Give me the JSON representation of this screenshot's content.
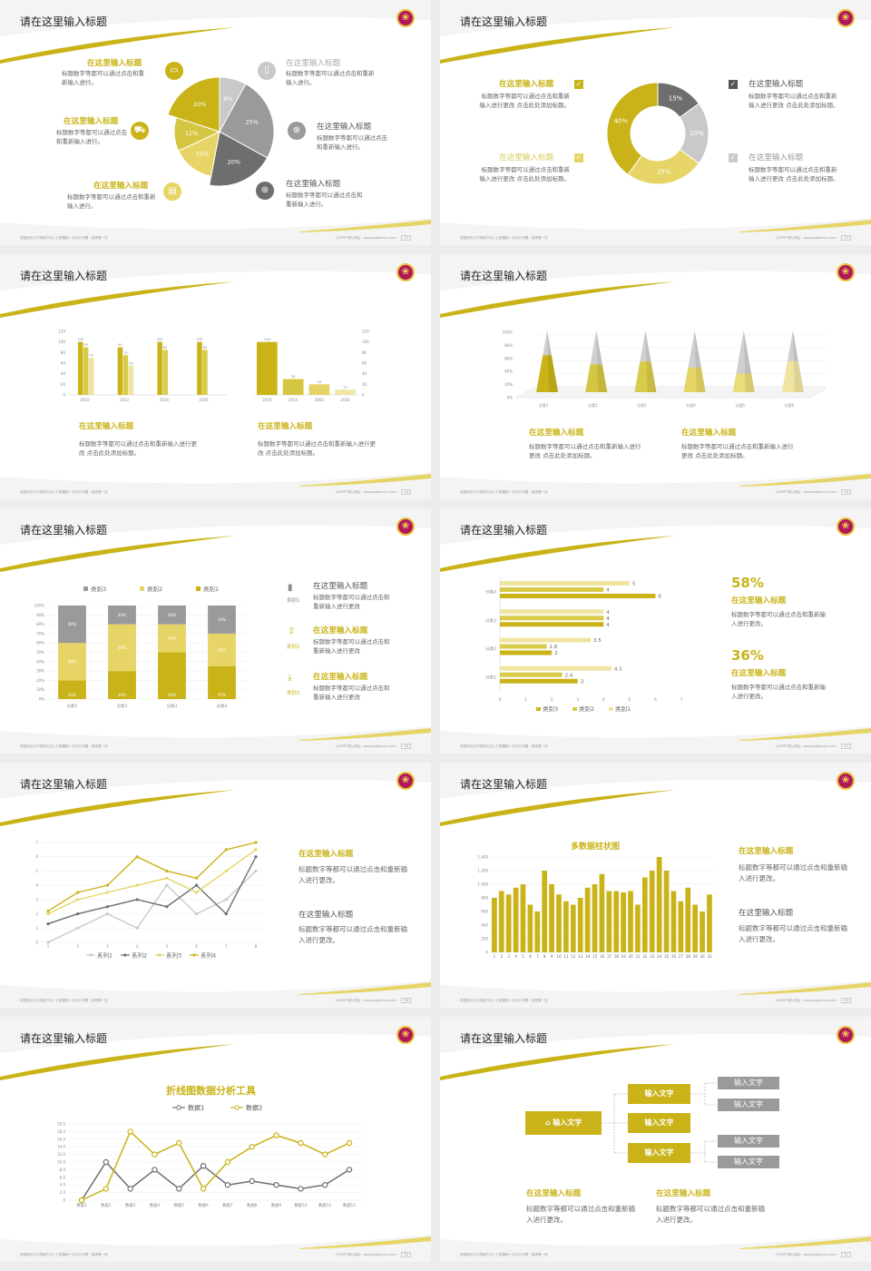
{
  "common": {
    "slide_title": "请在这里输入标题",
    "footer_left": "校园综合文字排版方法 | 汇报模板一幻灯片专题 · 辞退第一页",
    "footer_right": "[OHPPT网]  网址：www.pptgenius.com",
    "logo_glyph": "❀"
  },
  "colors": {
    "yellow": "#c9b318",
    "lightyellow": "#e6d566",
    "paleyellow": "#f0e6a4",
    "gray": "#9a9a9a",
    "darkgray": "#6e6e6e",
    "lightgray": "#c9c9c9"
  },
  "s12": {
    "page": "12",
    "pie": [
      {
        "label": "8%",
        "value": 8,
        "color": "#c9c9c9"
      },
      {
        "label": "25%",
        "value": 25,
        "color": "#9a9a9a"
      },
      {
        "label": "20%",
        "value": 20,
        "color": "#6e6e6e"
      },
      {
        "label": "15%",
        "value": 15,
        "color": "#e6d566"
      },
      {
        "label": "12%",
        "value": 12,
        "color": "#d4c640"
      },
      {
        "label": "20%",
        "value": 20,
        "color": "#c9b318"
      }
    ],
    "items": [
      {
        "title": "在这里输入标题",
        "text": "标题数字等都可以通过点击和重新输入进行。",
        "icon": "monitor-icon",
        "glyph": "▭"
      },
      {
        "title": "在这里输入标题",
        "text": "标题数字等都可以通过点击和重新输入进行。",
        "icon": "car-icon",
        "glyph": "⛟"
      },
      {
        "title": "在这里输入标题",
        "text": "标题数字等都可以通过点击和重新输入进行。",
        "icon": "book-icon",
        "glyph": "▤"
      },
      {
        "title": "在这里输入标题",
        "text": "标题数字等都可以通过点击和重新输入进行。",
        "icon": "phone-icon",
        "glyph": "▯"
      },
      {
        "title": "在这里输入标题",
        "text": "标题数字等都可以通过点击和重新输入进行。",
        "icon": "binoculars-icon",
        "glyph": "⊗"
      },
      {
        "title": "在这里输入标题",
        "text": "标题数字等都可以通过点击和重新输入进行。",
        "icon": "bicycle-icon",
        "glyph": "⊛"
      }
    ]
  },
  "s13": {
    "page": "13",
    "donut": [
      {
        "label": "15%",
        "value": 15,
        "color": "#6e6e6e"
      },
      {
        "label": "20%",
        "value": 20,
        "color": "#c9c9c9"
      },
      {
        "label": "25%",
        "value": 25,
        "color": "#e6d566"
      },
      {
        "label": "40%",
        "value": 40,
        "color": "#c9b318"
      }
    ],
    "items": [
      {
        "title": "在这里输入标题",
        "text": "标题数字等都可以通过点击和重新输入进行更改 点击此处添加标题。"
      },
      {
        "title": "在这里输入标题",
        "text": "标题数字等都可以通过点击和重新输入进行更改 点击此处添加标题。"
      },
      {
        "title": "在这里输入标题",
        "text": "标题数字等都可以通过点击和重新输入进行更改 点击此处添加标题。"
      },
      {
        "title": "在这里输入标题",
        "text": "标题数字等都可以通过点击和重新输入进行更改 点击此处添加标题。"
      }
    ]
  },
  "s14": {
    "page": "14",
    "chart_data": [
      {
        "type": "bar",
        "categories": [
          "2010",
          "2012",
          "2014",
          "2016"
        ],
        "series": [
          {
            "values": [
              100,
              90,
              100,
              100
            ]
          },
          {
            "values": [
              90,
              75,
              85,
              85
            ]
          },
          {
            "values": [
              70,
              55,
              0,
              0
            ]
          }
        ],
        "ylim": [
          0,
          120
        ],
        "yticks": [
          "0",
          "20",
          "40",
          "60",
          "80",
          "100",
          "120"
        ]
      },
      {
        "type": "bar",
        "categories": [
          "2016",
          "2014",
          "2002",
          "2018"
        ],
        "values": [
          100,
          30,
          20,
          10
        ],
        "ylim": [
          0,
          120
        ],
        "yticks": [
          "0",
          "20",
          "40",
          "60",
          "80",
          "100",
          "120"
        ]
      }
    ],
    "texts": [
      {
        "title": "在这里输入标题",
        "text": "标题数字等都可以通过点击和重新输入进行更改 点击此处添加标题。"
      },
      {
        "title": "在这里输入标题",
        "text": "标题数字等都可以通过点击和重新输入进行更改 点击此处添加标题。"
      }
    ]
  },
  "s15": {
    "page": "15",
    "chart_data": {
      "type": "bar",
      "categories": [
        "分类1",
        "分类2",
        "分类3",
        "分类4",
        "分类5",
        "分类6"
      ],
      "values": [
        60,
        45,
        50,
        40,
        30,
        50
      ],
      "ylim": [
        0,
        100
      ],
      "yticks": [
        "0%",
        "20%",
        "40%",
        "60%",
        "80%",
        "100%"
      ]
    },
    "texts": [
      {
        "title": "在这里输入标题",
        "text": "标题数字等都可以通过点击和重新输入进行更改 点击此处添加标题。"
      },
      {
        "title": "在这里输入标题",
        "text": "标题数字等都可以通过点击和重新输入进行更改 点击此处添加标题。"
      }
    ]
  },
  "s16": {
    "page": "16",
    "chart_data": {
      "type": "bar",
      "categories": [
        "分类1",
        "分类2",
        "分类3",
        "分类4"
      ],
      "series": [
        {
          "name": "类别1",
          "values": [
            20,
            30,
            50,
            35
          ]
        },
        {
          "name": "类别2",
          "values": [
            40,
            50,
            30,
            35
          ]
        },
        {
          "name": "类别3",
          "values": [
            40,
            20,
            20,
            30
          ]
        }
      ],
      "ylim": [
        0,
        100
      ],
      "yticks": [
        "0%",
        "10%",
        "20%",
        "30%",
        "40%",
        "50%",
        "60%",
        "70%",
        "80%",
        "90%",
        "100%"
      ]
    },
    "legend": [
      "类别3",
      "类别2",
      "类别1"
    ],
    "items": [
      {
        "title": "在这里输入标题",
        "text": "标题数字等都可以通过点击和重新输入进行更改",
        "tag": "类别1",
        "icon": "bar-chart-icon",
        "glyph": "▮"
      },
      {
        "title": "在这里输入标题",
        "text": "标题数字等都可以通过点击和重新输入进行更改",
        "tag": "类别2",
        "icon": "upload-icon",
        "glyph": "⇪"
      },
      {
        "title": "在这里输入标题",
        "text": "标题数字等都可以通过点击和重新输入进行更改",
        "tag": "类别3",
        "icon": "download-icon",
        "glyph": "⤓"
      }
    ]
  },
  "s17": {
    "page": "17",
    "chart_data": {
      "type": "bar",
      "categories": [
        "分类1",
        "分类2",
        "分类3",
        "分类4"
      ],
      "series": [
        {
          "name": "类别3",
          "values": [
            3,
            2,
            4,
            6
          ]
        },
        {
          "name": "类别2",
          "values": [
            2.4,
            1.8,
            4,
            4
          ]
        },
        {
          "name": "类别1",
          "values": [
            4.3,
            3.5,
            4,
            5
          ]
        }
      ],
      "xlim": [
        0,
        7
      ],
      "xticks": [
        "0",
        "1",
        "2",
        "3",
        "4",
        "5",
        "6",
        "7"
      ]
    },
    "stat1": {
      "value": "58%",
      "title": "在这里输入标题",
      "text": "标题数字等都可以通过点击和重新输入进行更改。"
    },
    "stat2": {
      "value": "36%",
      "title": "在这里输入标题",
      "text": "标题数字等都可以通过点击和重新输入进行更改。"
    }
  },
  "s18": {
    "page": "18",
    "chart_data": {
      "type": "line",
      "x": [
        1,
        2,
        3,
        4,
        5,
        6,
        7,
        8
      ],
      "series": [
        {
          "name": "系列1",
          "values": [
            0,
            1,
            2,
            1,
            4,
            2,
            3,
            5
          ]
        },
        {
          "name": "系列2",
          "values": [
            1.3,
            2,
            2.5,
            3,
            2.5,
            4,
            2,
            6
          ]
        },
        {
          "name": "系列3",
          "values": [
            2,
            3,
            3.5,
            4,
            4.5,
            3.5,
            5,
            6.5
          ]
        },
        {
          "name": "系列4",
          "values": [
            2.2,
            3.5,
            4,
            6,
            5,
            4.5,
            6.5,
            7
          ]
        }
      ],
      "ylim": [
        0,
        7
      ],
      "yticks": [
        "0",
        "1",
        "2",
        "3",
        "4",
        "5",
        "6",
        "7"
      ]
    },
    "texts": [
      {
        "title": "在这里输入标题",
        "text": "标题数字等都可以通过点击和重新输入进行更改。"
      },
      {
        "title": "在这里输入标题",
        "text": "标题数字等都可以通过点击和重新输入进行更改。"
      }
    ]
  },
  "s19": {
    "page": "19",
    "chart_data": {
      "type": "bar",
      "title": "多数据柱状图",
      "categories": [
        "1",
        "2",
        "3",
        "4",
        "5",
        "6",
        "7",
        "8",
        "9",
        "10",
        "11",
        "12",
        "13",
        "14",
        "15",
        "16",
        "17",
        "18",
        "19",
        "20",
        "21",
        "22",
        "23",
        "24",
        "25",
        "26",
        "27",
        "28",
        "29",
        "30",
        "31"
      ],
      "values": [
        800,
        900,
        850,
        950,
        1000,
        700,
        600,
        1200,
        1000,
        850,
        750,
        700,
        800,
        950,
        1000,
        1150,
        900,
        900,
        880,
        900,
        700,
        1100,
        1200,
        1400,
        1200,
        900,
        750,
        950,
        700,
        600,
        850
      ],
      "ylim": [
        0,
        1400
      ],
      "yticks": [
        "0",
        "200",
        "400",
        "600",
        "800",
        "1,000",
        "1,200",
        "1,400"
      ]
    },
    "texts": [
      {
        "title": "在这里输入标题",
        "text": "标题数字等都可以通过点击和重新输入进行更改。"
      },
      {
        "title": "在这里输入标题",
        "text": "标题数字等都可以通过点击和重新输入进行更改。"
      }
    ]
  },
  "s20": {
    "page": "20",
    "chart_data": {
      "type": "line",
      "title": "折线图数据分析工具",
      "categories": [
        "数据1",
        "数据2",
        "数据3",
        "数据4",
        "数据5",
        "数据6",
        "数据7",
        "数据8",
        "数据9",
        "数据10",
        "数据11",
        "数据12"
      ],
      "series": [
        {
          "name": "数据1",
          "values": [
            0,
            10,
            3,
            8,
            3,
            9,
            4,
            5,
            4,
            3,
            4,
            8
          ]
        },
        {
          "name": "数据2",
          "values": [
            0,
            3,
            18,
            12,
            15,
            3,
            10,
            14,
            17,
            15,
            12,
            15
          ]
        }
      ],
      "ylim": [
        0,
        20
      ],
      "yticks": [
        "0",
        "2.0",
        "4.0",
        "6.0",
        "8.0",
        "10.0",
        "12.0",
        "14.0",
        "16.0",
        "18.0",
        "20.0"
      ]
    }
  },
  "s21": {
    "page": "21",
    "root": "输入文字",
    "mid": [
      "输入文字",
      "输入文字",
      "输入文字"
    ],
    "leaves": [
      "输入文字",
      "输入文字",
      "输入文字",
      "输入文字"
    ],
    "texts": [
      {
        "title": "在这里输入标题",
        "text": "标题数字等都可以通过点击和重新输入进行更改。"
      },
      {
        "title": "在这里输入标题",
        "text": "标题数字等都可以通过点击和重新输入进行更改。"
      }
    ]
  }
}
